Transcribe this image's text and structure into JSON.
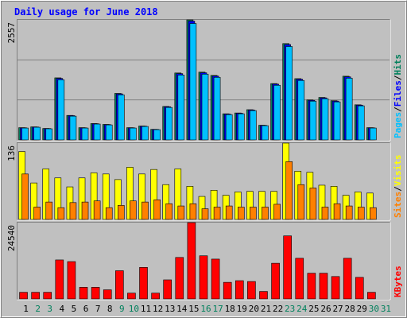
{
  "chart_data": [
    {
      "type": "bar",
      "title": "Daily usage for June 2018",
      "legend_separator": "/",
      "ylim": [
        0,
        2557
      ],
      "yticks": [
        2557
      ],
      "series": [
        {
          "name": "Hits",
          "color": "#00805c",
          "values": [
            261,
            278,
            244,
            1322,
            522,
            261,
            348,
            330,
            991,
            261,
            296,
            226,
            713,
            1426,
            2557,
            1444,
            1374,
            557,
            574,
            644,
            313,
            1200,
            2052,
            1305,
            852,
            905,
            835,
            1357,
            748,
            261,
            0
          ]
        },
        {
          "name": "Files",
          "color": "#0000ff",
          "values": [
            258,
            275,
            242,
            1309,
            517,
            258,
            345,
            327,
            981,
            258,
            293,
            224,
            706,
            1412,
            2531,
            1430,
            1360,
            551,
            568,
            638,
            310,
            1188,
            2031,
            1292,
            843,
            896,
            827,
            1343,
            741,
            258,
            0
          ]
        },
        {
          "name": "Pages",
          "color": "#00c0ff",
          "values": [
            253,
            270,
            237,
            1282,
            506,
            253,
            338,
            320,
            961,
            253,
            287,
            219,
            692,
            1383,
            2480,
            1401,
            1333,
            540,
            557,
            625,
            304,
            1164,
            1990,
            1266,
            826,
            878,
            810,
            1316,
            726,
            253,
            0
          ]
        }
      ]
    },
    {
      "type": "bar",
      "legend_separator": "/",
      "ylim": [
        0,
        136
      ],
      "yticks": [
        136
      ],
      "series": [
        {
          "name": "Visits",
          "color": "#ffff00",
          "values": [
            121,
            65,
            90,
            74,
            58,
            74,
            83,
            81,
            71,
            93,
            81,
            89,
            62,
            90,
            59,
            41,
            52,
            43,
            49,
            50,
            50,
            50,
            136,
            86,
            84,
            61,
            59,
            43,
            49,
            47,
            0
          ]
        },
        {
          "name": "Sites",
          "color": "#ff8000",
          "values": [
            81,
            22,
            31,
            21,
            30,
            31,
            33,
            21,
            25,
            33,
            31,
            35,
            28,
            24,
            28,
            19,
            22,
            24,
            22,
            22,
            22,
            27,
            103,
            62,
            56,
            22,
            28,
            24,
            22,
            21,
            0
          ]
        }
      ]
    },
    {
      "type": "bar",
      "ylim": [
        0,
        24540
      ],
      "yticks": [
        24540
      ],
      "series": [
        {
          "name": "KBytes",
          "color": "#ff0000",
          "values": [
            2134,
            2134,
            2134,
            12537,
            12003,
            3734,
            3734,
            2934,
            9069,
            1867,
            10136,
            1867,
            6135,
            13337,
            24540,
            13870,
            12803,
            5335,
            5868,
            5601,
            2401,
            11470,
            20273,
            13070,
            8269,
            8269,
            7202,
            13070,
            6935,
            2134,
            0
          ]
        }
      ],
      "categories": [
        "1",
        "2",
        "3",
        "4",
        "5",
        "6",
        "7",
        "8",
        "9",
        "10",
        "11",
        "12",
        "13",
        "14",
        "15",
        "16",
        "17",
        "18",
        "19",
        "20",
        "21",
        "22",
        "23",
        "24",
        "25",
        "26",
        "27",
        "28",
        "29",
        "30",
        "31"
      ],
      "category_colors": [
        "#000000",
        "#00805c",
        "#00805c",
        "#000000",
        "#000000",
        "#000000",
        "#000000",
        "#000000",
        "#00805c",
        "#00805c",
        "#000000",
        "#000000",
        "#000000",
        "#000000",
        "#000000",
        "#00805c",
        "#00805c",
        "#000000",
        "#000000",
        "#000000",
        "#000000",
        "#000000",
        "#00805c",
        "#00805c",
        "#000000",
        "#000000",
        "#000000",
        "#000000",
        "#000000",
        "#00805c",
        "#00805c"
      ]
    }
  ]
}
